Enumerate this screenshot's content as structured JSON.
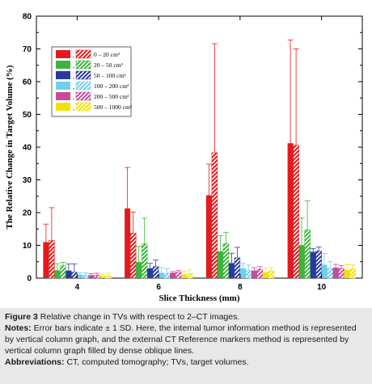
{
  "chart_data": {
    "type": "bar",
    "xlabel": "Slice Thickness (mm)",
    "ylabel": "The Relative Change in Target Volume (%)",
    "ylim": [
      0,
      80
    ],
    "yticks": [
      0,
      10,
      20,
      30,
      40,
      50,
      60,
      70,
      80
    ],
    "categories": [
      "4",
      "6",
      "8",
      "10"
    ],
    "legend": {
      "placement": "top-left",
      "separator": ",",
      "entries": [
        "0 – 20 cm³",
        "20 – 50 cm³",
        "50 – 100 cm³",
        "100 – 200 cm³",
        "200 – 500 cm³",
        "500 – 1000 cm³"
      ]
    },
    "series": [
      {
        "group": "0 – 20 cm³",
        "method": "solid",
        "color": "#e41a1c",
        "values": [
          11.0,
          21.3,
          25.3,
          41.2
        ],
        "errors": [
          5.5,
          12.5,
          9.5,
          31.5
        ]
      },
      {
        "group": "0 – 20 cm³",
        "method": "hatched",
        "color": "#e41a1c",
        "values": [
          11.5,
          13.7,
          38.3,
          40.6
        ],
        "errors": [
          10.0,
          6.5,
          33.3,
          29.4
        ]
      },
      {
        "group": "20 – 50 cm³",
        "method": "solid",
        "color": "#3cb43c",
        "values": [
          2.4,
          4.9,
          8.2,
          10.1
        ],
        "errors": [
          2.0,
          4.8,
          4.8,
          8.3
        ]
      },
      {
        "group": "20 – 50 cm³",
        "method": "hatched",
        "color": "#3cb43c",
        "values": [
          3.8,
          10.5,
          10.6,
          14.8
        ],
        "errors": [
          1.0,
          7.8,
          3.4,
          8.8
        ]
      },
      {
        "group": "50 – 100 cm³",
        "method": "solid",
        "color": "#2b3a9e",
        "values": [
          2.3,
          3.0,
          4.6,
          8.0
        ],
        "errors": [
          2.0,
          1.5,
          3.0,
          1.0
        ]
      },
      {
        "group": "50 – 100 cm³",
        "method": "hatched",
        "color": "#2b3a9e",
        "values": [
          1.8,
          3.5,
          6.2,
          8.3
        ],
        "errors": [
          2.5,
          2.0,
          3.2,
          1.2
        ]
      },
      {
        "group": "100 – 200 cm³",
        "method": "solid",
        "color": "#6fd0ee",
        "values": [
          1.1,
          1.6,
          3.0,
          4.1
        ],
        "errors": [
          0.6,
          1.6,
          1.5,
          3.4
        ]
      },
      {
        "group": "100 – 200 cm³",
        "method": "hatched",
        "color": "#6fd0ee",
        "values": [
          0.9,
          1.5,
          2.3,
          3.0
        ],
        "errors": [
          0.7,
          1.3,
          1.7,
          2.0
        ]
      },
      {
        "group": "200 – 500 cm³",
        "method": "solid",
        "color": "#c84a9a",
        "values": [
          0.9,
          1.6,
          2.3,
          3.2
        ],
        "errors": [
          0.5,
          0.4,
          0.9,
          1.0
        ]
      },
      {
        "group": "200 – 500 cm³",
        "method": "hatched",
        "color": "#c84a9a",
        "values": [
          0.9,
          1.8,
          2.7,
          3.0
        ],
        "errors": [
          0.6,
          0.5,
          0.8,
          0.8
        ]
      },
      {
        "group": "500 – 1000 cm³",
        "method": "solid",
        "color": "#f2e200",
        "values": [
          0.6,
          1.1,
          1.8,
          2.5
        ],
        "errors": [
          0.6,
          1.0,
          1.2,
          1.6
        ]
      },
      {
        "group": "500 – 1000 cm³",
        "method": "hatched",
        "color": "#f2e200",
        "values": [
          0.7,
          1.4,
          2.2,
          2.9
        ],
        "errors": [
          0.8,
          1.1,
          1.0,
          1.1
        ]
      }
    ]
  },
  "caption": {
    "figure_label": "Figure 3",
    "figure_text": "Relative change in TVs with respect to 2–CT images.",
    "notes_label": "Notes:",
    "notes_text": "Error bars indicate ± 1 SD. Here, the internal tumor information method is represented by vertical column graph, and the external CT Reference markers method is represented by vertical column graph filled by dense oblique lines.",
    "abbrev_label": "Abbreviations:",
    "abbrev_text": "CT, computed tomography; TVs, target volumes."
  }
}
